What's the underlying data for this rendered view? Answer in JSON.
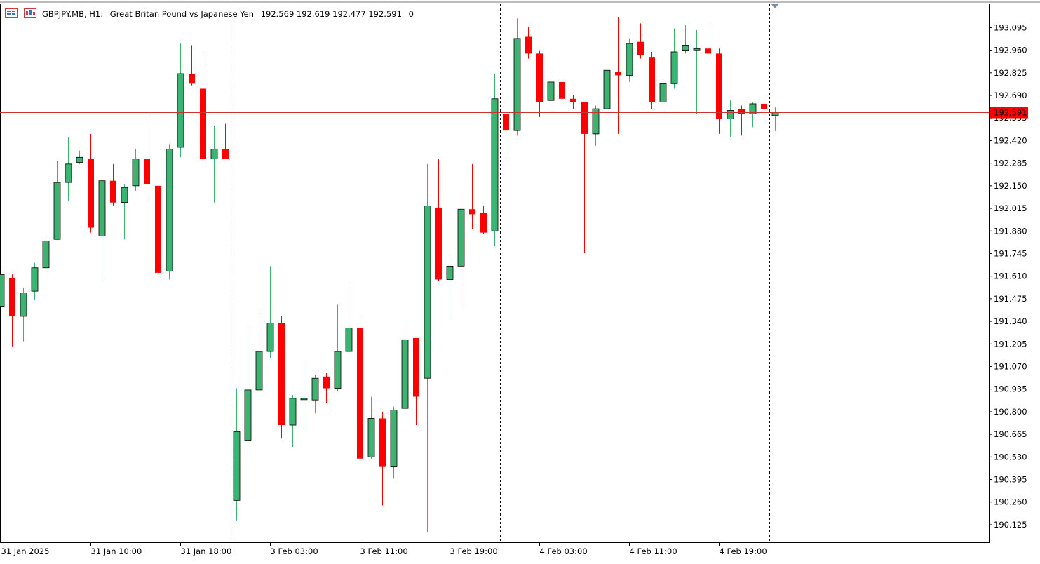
{
  "header": {
    "symbol": "GBPJPY.MB, H1:",
    "description": "Great Britan Pound vs Japanese Yen",
    "ohlc": "192.569 192.619 192.477 192.591",
    "volume": "0",
    "icon_left": "grid-icon",
    "icon_right": "chart-window-icon"
  },
  "colors": {
    "bull": "#3CB371",
    "bear": "#FF0000",
    "outline": "#000000",
    "price_line": "#CC3333",
    "price_label_bg": "#FF0000",
    "price_label_text": "#FFFFFF",
    "grid": "none"
  },
  "chart_data": {
    "type": "candlestick",
    "title": "",
    "xlabel": "",
    "ylabel": "",
    "ylim": [
      190.02,
      193.235
    ],
    "grid": false,
    "current_price": "192.591",
    "y_ticks": [
      "193.095",
      "192.960",
      "192.825",
      "192.690",
      "192.555",
      "192.420",
      "192.285",
      "192.150",
      "192.015",
      "191.880",
      "191.745",
      "191.610",
      "191.475",
      "191.340",
      "191.205",
      "191.070",
      "190.935",
      "190.800",
      "190.665",
      "190.530",
      "190.395",
      "190.260",
      "190.125"
    ],
    "x_ticks": [
      {
        "label": "31 Jan 2025",
        "index": 0
      },
      {
        "label": "31 Jan 10:00",
        "index": 8
      },
      {
        "label": "31 Jan 18:00",
        "index": 16
      },
      {
        "label": "3 Feb 03:00",
        "index": 24
      },
      {
        "label": "3 Feb 11:00",
        "index": 32
      },
      {
        "label": "3 Feb 19:00",
        "index": 40
      },
      {
        "label": "4 Feb 03:00",
        "index": 48
      },
      {
        "label": "4 Feb 11:00",
        "index": 56
      },
      {
        "label": "4 Feb 19:00",
        "index": 64
      }
    ],
    "separators": [
      20.5,
      44.5,
      68.5
    ],
    "candles": [
      {
        "o": 191.43,
        "h": 191.66,
        "l": 191.43,
        "c": 191.62
      },
      {
        "o": 191.6,
        "h": 191.62,
        "l": 191.19,
        "c": 191.37
      },
      {
        "o": 191.37,
        "h": 191.54,
        "l": 191.22,
        "c": 191.51
      },
      {
        "o": 191.52,
        "h": 191.69,
        "l": 191.47,
        "c": 191.66
      },
      {
        "o": 191.66,
        "h": 191.84,
        "l": 191.62,
        "c": 191.82
      },
      {
        "o": 191.83,
        "h": 192.3,
        "l": 191.83,
        "c": 192.17
      },
      {
        "o": 192.17,
        "h": 192.44,
        "l": 192.06,
        "c": 192.28
      },
      {
        "o": 192.29,
        "h": 192.36,
        "l": 192.28,
        "c": 192.32
      },
      {
        "o": 192.31,
        "h": 192.46,
        "l": 191.87,
        "c": 191.9
      },
      {
        "o": 191.85,
        "h": 192.18,
        "l": 191.6,
        "c": 192.18
      },
      {
        "o": 192.18,
        "h": 192.28,
        "l": 192.03,
        "c": 192.05
      },
      {
        "o": 192.05,
        "h": 192.16,
        "l": 191.83,
        "c": 192.14
      },
      {
        "o": 192.15,
        "h": 192.37,
        "l": 192.12,
        "c": 192.31
      },
      {
        "o": 192.31,
        "h": 192.58,
        "l": 192.07,
        "c": 192.16
      },
      {
        "o": 192.15,
        "h": 192.15,
        "l": 191.6,
        "c": 191.63
      },
      {
        "o": 191.64,
        "h": 192.4,
        "l": 191.59,
        "c": 192.37
      },
      {
        "o": 192.38,
        "h": 193.0,
        "l": 192.32,
        "c": 192.82
      },
      {
        "o": 192.82,
        "h": 192.99,
        "l": 192.75,
        "c": 192.76
      },
      {
        "o": 192.73,
        "h": 192.93,
        "l": 192.26,
        "c": 192.31
      },
      {
        "o": 192.31,
        "h": 192.51,
        "l": 192.05,
        "c": 192.37
      },
      {
        "o": 192.37,
        "h": 192.52,
        "l": 192.31,
        "c": 192.31
      },
      {
        "o": 190.27,
        "h": 190.94,
        "l": 190.15,
        "c": 190.68
      },
      {
        "o": 190.63,
        "h": 191.31,
        "l": 190.56,
        "c": 190.93
      },
      {
        "o": 190.93,
        "h": 191.39,
        "l": 190.88,
        "c": 191.16
      },
      {
        "o": 191.16,
        "h": 191.67,
        "l": 191.12,
        "c": 191.33
      },
      {
        "o": 191.33,
        "h": 191.37,
        "l": 190.64,
        "c": 190.72
      },
      {
        "o": 190.72,
        "h": 190.9,
        "l": 190.59,
        "c": 190.88
      },
      {
        "o": 190.88,
        "h": 191.1,
        "l": 190.7,
        "c": 190.88
      },
      {
        "o": 190.87,
        "h": 191.02,
        "l": 190.79,
        "c": 191.0
      },
      {
        "o": 191.01,
        "h": 191.03,
        "l": 190.85,
        "c": 190.94
      },
      {
        "o": 190.94,
        "h": 191.44,
        "l": 190.92,
        "c": 191.16
      },
      {
        "o": 191.16,
        "h": 191.57,
        "l": 191.14,
        "c": 191.3
      },
      {
        "o": 191.3,
        "h": 191.36,
        "l": 190.51,
        "c": 190.52
      },
      {
        "o": 190.53,
        "h": 190.89,
        "l": 190.52,
        "c": 190.76
      },
      {
        "o": 190.76,
        "h": 190.8,
        "l": 190.24,
        "c": 190.47
      },
      {
        "o": 190.47,
        "h": 190.83,
        "l": 190.4,
        "c": 190.81
      },
      {
        "o": 190.82,
        "h": 191.32,
        "l": 190.81,
        "c": 191.23
      },
      {
        "o": 191.24,
        "h": 191.24,
        "l": 190.72,
        "c": 190.89
      },
      {
        "o": 191.0,
        "h": 192.28,
        "l": 190.08,
        "c": 192.03
      },
      {
        "o": 192.02,
        "h": 192.31,
        "l": 191.58,
        "c": 191.59
      },
      {
        "o": 191.59,
        "h": 191.72,
        "l": 191.37,
        "c": 191.67
      },
      {
        "o": 191.67,
        "h": 192.09,
        "l": 191.44,
        "c": 192.01
      },
      {
        "o": 192.01,
        "h": 192.28,
        "l": 191.89,
        "c": 191.98
      },
      {
        "o": 191.99,
        "h": 192.03,
        "l": 191.86,
        "c": 191.87
      },
      {
        "o": 191.88,
        "h": 192.82,
        "l": 191.79,
        "c": 192.67
      },
      {
        "o": 192.58,
        "h": 192.59,
        "l": 192.3,
        "c": 192.48
      },
      {
        "o": 192.48,
        "h": 193.15,
        "l": 192.45,
        "c": 193.03
      },
      {
        "o": 193.04,
        "h": 193.1,
        "l": 192.91,
        "c": 192.94
      },
      {
        "o": 192.94,
        "h": 192.96,
        "l": 192.56,
        "c": 192.65
      },
      {
        "o": 192.66,
        "h": 192.84,
        "l": 192.6,
        "c": 192.77
      },
      {
        "o": 192.77,
        "h": 192.78,
        "l": 192.63,
        "c": 192.67
      },
      {
        "o": 192.67,
        "h": 192.69,
        "l": 192.61,
        "c": 192.65
      },
      {
        "o": 192.65,
        "h": 192.65,
        "l": 191.75,
        "c": 192.46
      },
      {
        "o": 192.46,
        "h": 192.63,
        "l": 192.39,
        "c": 192.61
      },
      {
        "o": 192.61,
        "h": 192.85,
        "l": 192.55,
        "c": 192.84
      },
      {
        "o": 192.83,
        "h": 193.16,
        "l": 192.46,
        "c": 192.81
      },
      {
        "o": 192.81,
        "h": 193.03,
        "l": 192.77,
        "c": 193.0
      },
      {
        "o": 193.01,
        "h": 193.12,
        "l": 192.91,
        "c": 192.93
      },
      {
        "o": 192.92,
        "h": 192.95,
        "l": 192.61,
        "c": 192.65
      },
      {
        "o": 192.65,
        "h": 192.77,
        "l": 192.56,
        "c": 192.76
      },
      {
        "o": 192.76,
        "h": 193.09,
        "l": 192.73,
        "c": 192.95
      },
      {
        "o": 192.96,
        "h": 193.11,
        "l": 192.94,
        "c": 192.99
      },
      {
        "o": 192.97,
        "h": 193.08,
        "l": 192.58,
        "c": 192.97
      },
      {
        "o": 192.97,
        "h": 193.1,
        "l": 192.89,
        "c": 192.94
      },
      {
        "o": 192.94,
        "h": 192.97,
        "l": 192.46,
        "c": 192.55
      },
      {
        "o": 192.55,
        "h": 192.66,
        "l": 192.44,
        "c": 192.6
      },
      {
        "o": 192.61,
        "h": 192.63,
        "l": 192.45,
        "c": 192.58
      },
      {
        "o": 192.58,
        "h": 192.65,
        "l": 192.5,
        "c": 192.64
      },
      {
        "o": 192.64,
        "h": 192.68,
        "l": 192.54,
        "c": 192.61
      },
      {
        "o": 192.569,
        "h": 192.619,
        "l": 192.477,
        "c": 192.591
      }
    ]
  }
}
